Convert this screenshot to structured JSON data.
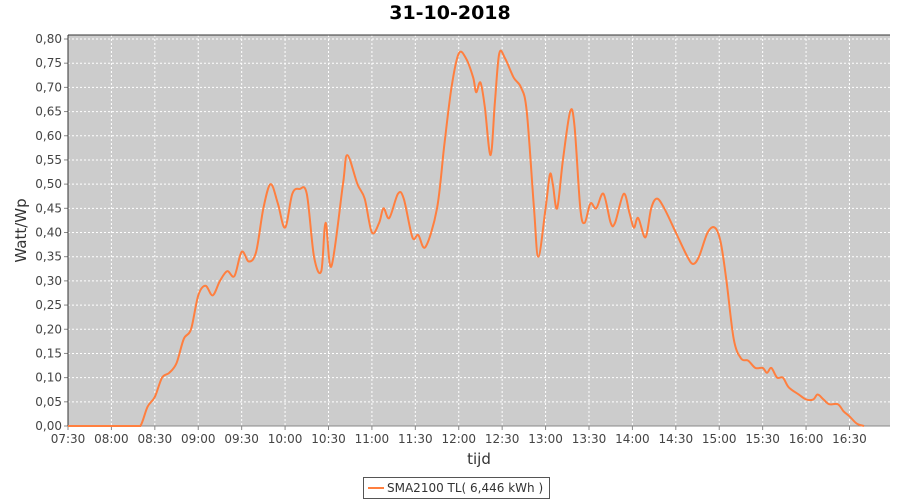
{
  "chart_data": {
    "type": "line",
    "title": "31-10-2018",
    "xlabel": "tijd",
    "ylabel": "Watt/Wp",
    "xlim": [
      "07:30",
      "16:58"
    ],
    "ylim": [
      0,
      0.8
    ],
    "grid": true,
    "legend_placement": "bottom",
    "x_ticks": [
      "07:30",
      "08:00",
      "08:30",
      "09:00",
      "09:30",
      "10:00",
      "10:30",
      "11:00",
      "11:30",
      "12:00",
      "12:30",
      "13:00",
      "13:30",
      "14:00",
      "14:30",
      "15:00",
      "15:30",
      "16:00",
      "16:30"
    ],
    "y_ticks": [
      "0,00",
      "0,05",
      "0,10",
      "0,15",
      "0,20",
      "0,25",
      "0,30",
      "0,35",
      "0,40",
      "0,45",
      "0,50",
      "0,55",
      "0,60",
      "0,65",
      "0,70",
      "0,75",
      "0,80"
    ],
    "colors": {
      "series": "#ff7f3f",
      "plot_bg": "#cccccc",
      "grid": "#ffffff"
    },
    "series": [
      {
        "name": "SMA2100 TL( 6,446 kWh )",
        "x": [
          "07:30",
          "08:00",
          "08:15",
          "08:20",
          "08:25",
          "08:30",
          "08:35",
          "08:40",
          "08:45",
          "08:50",
          "08:55",
          "09:00",
          "09:05",
          "09:10",
          "09:15",
          "09:20",
          "09:25",
          "09:30",
          "09:35",
          "09:40",
          "09:45",
          "09:50",
          "09:55",
          "10:00",
          "10:05",
          "10:10",
          "10:15",
          "10:20",
          "10:25",
          "10:28",
          "10:32",
          "10:40",
          "10:43",
          "10:50",
          "10:55",
          "11:00",
          "11:05",
          "11:08",
          "11:12",
          "11:18",
          "11:22",
          "11:28",
          "11:32",
          "11:37",
          "11:45",
          "11:50",
          "11:55",
          "12:00",
          "12:05",
          "12:10",
          "12:12",
          "12:15",
          "12:18",
          "12:22",
          "12:25",
          "12:28",
          "12:32",
          "12:38",
          "12:43",
          "12:47",
          "12:52",
          "12:55",
          "13:00",
          "13:03",
          "13:05",
          "13:08",
          "13:12",
          "13:17",
          "13:20",
          "13:24",
          "13:27",
          "13:31",
          "13:35",
          "13:40",
          "13:45",
          "13:48",
          "13:54",
          "13:58",
          "14:01",
          "14:04",
          "14:09",
          "14:13",
          "14:17",
          "14:22",
          "14:30",
          "14:38",
          "14:42",
          "14:46",
          "14:52",
          "14:57",
          "15:01",
          "15:05",
          "15:10",
          "15:15",
          "15:20",
          "15:25",
          "15:30",
          "15:33",
          "15:36",
          "15:40",
          "15:44",
          "15:48",
          "15:55",
          "16:00",
          "16:05",
          "16:08",
          "16:12",
          "16:16",
          "16:22",
          "16:26",
          "16:30",
          "16:35",
          "16:40"
        ],
        "values": [
          0,
          0,
          0,
          0,
          0.04,
          0.06,
          0.1,
          0.11,
          0.13,
          0.18,
          0.2,
          0.27,
          0.29,
          0.27,
          0.3,
          0.32,
          0.31,
          0.36,
          0.34,
          0.36,
          0.45,
          0.5,
          0.46,
          0.41,
          0.48,
          0.49,
          0.48,
          0.35,
          0.32,
          0.42,
          0.33,
          0.5,
          0.56,
          0.5,
          0.47,
          0.4,
          0.42,
          0.45,
          0.43,
          0.48,
          0.47,
          0.39,
          0.395,
          0.37,
          0.45,
          0.58,
          0.7,
          0.77,
          0.76,
          0.72,
          0.69,
          0.71,
          0.66,
          0.56,
          0.67,
          0.77,
          0.76,
          0.72,
          0.7,
          0.65,
          0.45,
          0.35,
          0.45,
          0.52,
          0.5,
          0.45,
          0.55,
          0.65,
          0.62,
          0.45,
          0.42,
          0.46,
          0.45,
          0.48,
          0.42,
          0.42,
          0.48,
          0.44,
          0.41,
          0.43,
          0.39,
          0.45,
          0.47,
          0.45,
          0.4,
          0.35,
          0.335,
          0.35,
          0.4,
          0.41,
          0.38,
          0.3,
          0.18,
          0.14,
          0.135,
          0.12,
          0.12,
          0.11,
          0.12,
          0.1,
          0.1,
          0.08,
          0.065,
          0.055,
          0.055,
          0.065,
          0.055,
          0.045,
          0.045,
          0.03,
          0.02,
          0.005,
          0
        ]
      }
    ]
  }
}
